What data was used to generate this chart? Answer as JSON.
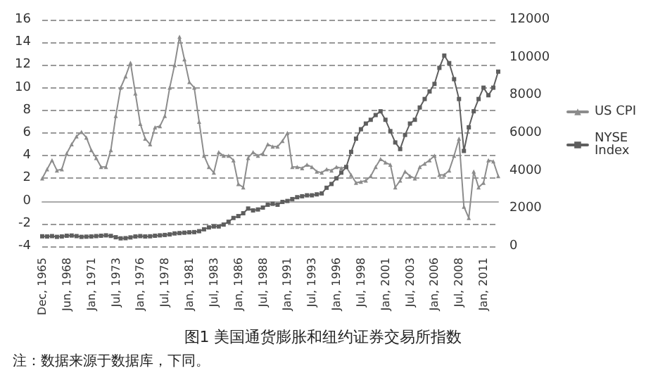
{
  "chart_data": {
    "type": "line",
    "title": "图1 美国通货膨胀和纽约证券交易所指数",
    "annotations": [
      "注：数据来源于数据库，下同。"
    ],
    "categories": [
      "Dec, 1965",
      null,
      null,
      null,
      null,
      "Jun, 1968",
      null,
      null,
      null,
      null,
      "Jan, 1971",
      null,
      null,
      null,
      null,
      "Jul, 1973",
      null,
      null,
      null,
      null,
      "Jan, 1976",
      null,
      null,
      null,
      null,
      "Jul, 1978",
      null,
      null,
      null,
      null,
      "Jan, 1981",
      null,
      null,
      null,
      null,
      "Jul, 1983",
      null,
      null,
      null,
      null,
      "Jan, 1986",
      null,
      null,
      null,
      null,
      "Jul, 1988",
      null,
      null,
      null,
      null,
      "Jan, 1991",
      null,
      null,
      null,
      null,
      "Jul, 1993",
      null,
      null,
      null,
      null,
      "Jan, 1996",
      null,
      null,
      null,
      null,
      "Jul, 1998",
      null,
      null,
      null,
      null,
      "Jan, 2001",
      null,
      null,
      null,
      null,
      "Jul, 2003",
      null,
      null,
      null,
      null,
      "Jan, 2006",
      null,
      null,
      null,
      null,
      "Jul, 2008",
      null,
      null,
      null,
      null,
      "Jan, 2011",
      null,
      null,
      null
    ],
    "series": [
      {
        "name": "US CPI",
        "color": "#8c8c8c",
        "marker": "triangle",
        "values": [
          2.0,
          2.8,
          3.6,
          2.7,
          2.8,
          4.2,
          5.0,
          5.7,
          6.1,
          5.6,
          4.5,
          3.8,
          3.0,
          3.0,
          4.5,
          7.5,
          10.0,
          11.0,
          12.2,
          9.5,
          6.8,
          5.5,
          5.0,
          6.5,
          6.6,
          7.5,
          10.0,
          12.0,
          14.5,
          12.5,
          10.5,
          10.0,
          7.0,
          4.0,
          3.0,
          2.5,
          4.3,
          4.0,
          4.0,
          3.6,
          1.5,
          1.2,
          3.8,
          4.3,
          4.0,
          4.2,
          5.0,
          4.8,
          4.8,
          5.3,
          6.0,
          3.0,
          3.0,
          2.9,
          3.2,
          3.0,
          2.6,
          2.5,
          2.8,
          2.7,
          3.0,
          2.9,
          3.0,
          2.3,
          1.6,
          1.7,
          1.8,
          2.2,
          3.0,
          3.7,
          3.4,
          3.2,
          1.2,
          1.8,
          2.6,
          2.2,
          2.0,
          3.0,
          3.3,
          3.6,
          4.0,
          2.3,
          2.3,
          2.7,
          4.0,
          5.5,
          -0.5,
          -1.5,
          2.6,
          1.2,
          1.6,
          3.6,
          3.5,
          2.2
        ]
      },
      {
        "name": "NYSE Index",
        "color": "#5e5e5e",
        "marker": "square",
        "axis": "y2",
        "values": [
          530,
          520,
          540,
          500,
          520,
          560,
          570,
          540,
          500,
          510,
          520,
          540,
          560,
          580,
          550,
          480,
          420,
          430,
          470,
          520,
          540,
          520,
          530,
          560,
          580,
          600,
          630,
          680,
          700,
          720,
          740,
          750,
          800,
          900,
          1000,
          1050,
          1050,
          1150,
          1300,
          1500,
          1600,
          1750,
          2000,
          1900,
          1950,
          2050,
          2200,
          2250,
          2200,
          2350,
          2400,
          2500,
          2600,
          2650,
          2700,
          2700,
          2750,
          2800,
          3100,
          3300,
          3600,
          3900,
          4200,
          5000,
          5700,
          6200,
          6500,
          6700,
          6950,
          7150,
          6700,
          6100,
          5500,
          5150,
          5900,
          6500,
          6700,
          7350,
          7800,
          8200,
          8600,
          9450,
          10100,
          9700,
          8850,
          7800,
          5050,
          6300,
          7150,
          7800,
          8400,
          8000,
          8400,
          9250
        ]
      }
    ],
    "ylim": [
      -4,
      16
    ],
    "yticks": [
      -4,
      -2,
      0,
      2,
      4,
      6,
      8,
      10,
      12,
      14,
      16
    ],
    "y2lim": [
      0,
      12000
    ],
    "y2ticks": [
      0,
      2000,
      4000,
      6000,
      8000,
      10000,
      12000
    ],
    "grid": "y",
    "legend": "right",
    "line_style": "solid"
  }
}
